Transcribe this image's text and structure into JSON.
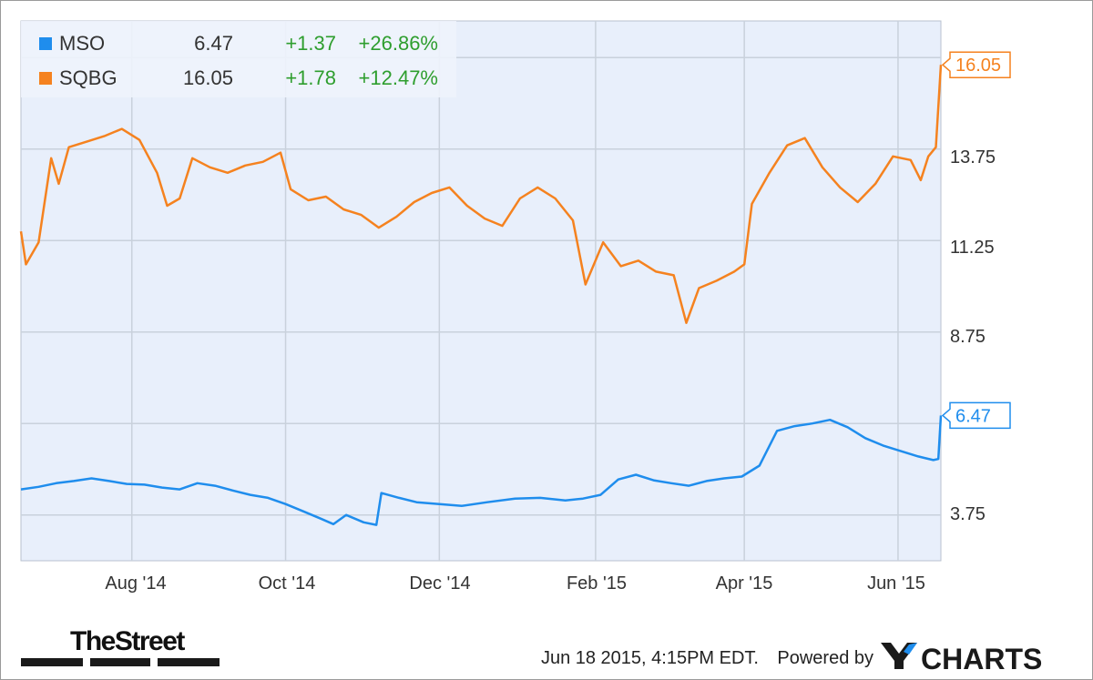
{
  "chart_data": {
    "type": "line",
    "title": "",
    "xlabel": "",
    "ylabel": "",
    "x_tick_labels": [
      "Aug '14",
      "Oct '14",
      "Dec '14",
      "Feb '15",
      "Apr '15",
      "Jun '15"
    ],
    "x_tick_dates": [
      "2014-08-01",
      "2014-10-01",
      "2014-12-01",
      "2015-02-01",
      "2015-04-01",
      "2015-06-01"
    ],
    "x_range": [
      "2014-06-18",
      "2015-06-18"
    ],
    "y_tick_labels": [
      "3.75",
      "8.75",
      "11.25",
      "13.75"
    ],
    "y_ticks": [
      3.75,
      6.25,
      8.75,
      11.25,
      13.75,
      16.25
    ],
    "ylim": [
      2.5,
      17.25
    ],
    "grid": true,
    "legend_position": "top-left",
    "series": [
      {
        "name": "MSO",
        "color": "#1f8ded",
        "last_value": "6.47",
        "change": "+1.37",
        "change_pct": "+26.86%",
        "end_label": "6.47",
        "points": [
          [
            "2014-06-18",
            4.45
          ],
          [
            "2014-06-25",
            4.52
          ],
          [
            "2014-07-02",
            4.62
          ],
          [
            "2014-07-09",
            4.68
          ],
          [
            "2014-07-16",
            4.75
          ],
          [
            "2014-07-23",
            4.68
          ],
          [
            "2014-07-30",
            4.6
          ],
          [
            "2014-08-06",
            4.58
          ],
          [
            "2014-08-13",
            4.5
          ],
          [
            "2014-08-20",
            4.45
          ],
          [
            "2014-08-27",
            4.62
          ],
          [
            "2014-09-03",
            4.55
          ],
          [
            "2014-09-10",
            4.42
          ],
          [
            "2014-09-17",
            4.3
          ],
          [
            "2014-09-24",
            4.22
          ],
          [
            "2014-10-01",
            4.05
          ],
          [
            "2014-10-08",
            3.85
          ],
          [
            "2014-10-15",
            3.65
          ],
          [
            "2014-10-20",
            3.5
          ],
          [
            "2014-10-25",
            3.75
          ],
          [
            "2014-11-01",
            3.55
          ],
          [
            "2014-11-06",
            3.48
          ],
          [
            "2014-11-08",
            4.35
          ],
          [
            "2014-11-15",
            4.22
          ],
          [
            "2014-11-22",
            4.1
          ],
          [
            "2014-12-01",
            4.05
          ],
          [
            "2014-12-10",
            4.0
          ],
          [
            "2014-12-20",
            4.1
          ],
          [
            "2014-12-31",
            4.2
          ],
          [
            "2015-01-10",
            4.22
          ],
          [
            "2015-01-20",
            4.15
          ],
          [
            "2015-01-27",
            4.2
          ],
          [
            "2015-02-03",
            4.3
          ],
          [
            "2015-02-10",
            4.72
          ],
          [
            "2015-02-17",
            4.85
          ],
          [
            "2015-02-24",
            4.7
          ],
          [
            "2015-03-03",
            4.62
          ],
          [
            "2015-03-10",
            4.55
          ],
          [
            "2015-03-17",
            4.68
          ],
          [
            "2015-03-24",
            4.75
          ],
          [
            "2015-03-31",
            4.8
          ],
          [
            "2015-04-07",
            5.1
          ],
          [
            "2015-04-14",
            6.05
          ],
          [
            "2015-04-21",
            6.18
          ],
          [
            "2015-04-28",
            6.25
          ],
          [
            "2015-05-05",
            6.35
          ],
          [
            "2015-05-12",
            6.15
          ],
          [
            "2015-05-19",
            5.85
          ],
          [
            "2015-05-26",
            5.65
          ],
          [
            "2015-06-02",
            5.5
          ],
          [
            "2015-06-09",
            5.35
          ],
          [
            "2015-06-15",
            5.25
          ],
          [
            "2015-06-17",
            5.28
          ],
          [
            "2015-06-18",
            6.47
          ]
        ]
      },
      {
        "name": "SQBG",
        "color": "#f5821f",
        "last_value": "16.05",
        "change": "+1.78",
        "change_pct": "+12.47%",
        "end_label": "16.05",
        "points": [
          [
            "2014-06-18",
            11.5
          ],
          [
            "2014-06-20",
            10.6
          ],
          [
            "2014-06-25",
            11.2
          ],
          [
            "2014-06-30",
            13.5
          ],
          [
            "2014-07-03",
            12.8
          ],
          [
            "2014-07-07",
            13.8
          ],
          [
            "2014-07-14",
            13.95
          ],
          [
            "2014-07-21",
            14.1
          ],
          [
            "2014-07-28",
            14.3
          ],
          [
            "2014-08-04",
            14.0
          ],
          [
            "2014-08-11",
            13.1
          ],
          [
            "2014-08-15",
            12.2
          ],
          [
            "2014-08-20",
            12.4
          ],
          [
            "2014-08-25",
            13.5
          ],
          [
            "2014-09-01",
            13.25
          ],
          [
            "2014-09-08",
            13.1
          ],
          [
            "2014-09-15",
            13.3
          ],
          [
            "2014-09-22",
            13.4
          ],
          [
            "2014-09-29",
            13.65
          ],
          [
            "2014-10-03",
            12.65
          ],
          [
            "2014-10-10",
            12.35
          ],
          [
            "2014-10-17",
            12.45
          ],
          [
            "2014-10-24",
            12.1
          ],
          [
            "2014-10-31",
            11.95
          ],
          [
            "2014-11-07",
            11.6
          ],
          [
            "2014-11-14",
            11.9
          ],
          [
            "2014-11-21",
            12.3
          ],
          [
            "2014-11-28",
            12.55
          ],
          [
            "2014-12-05",
            12.7
          ],
          [
            "2014-12-12",
            12.2
          ],
          [
            "2014-12-19",
            11.85
          ],
          [
            "2014-12-26",
            11.65
          ],
          [
            "2015-01-02",
            12.4
          ],
          [
            "2015-01-09",
            12.7
          ],
          [
            "2015-01-16",
            12.4
          ],
          [
            "2015-01-23",
            11.8
          ],
          [
            "2015-01-28",
            10.05
          ],
          [
            "2015-02-04",
            11.2
          ],
          [
            "2015-02-11",
            10.55
          ],
          [
            "2015-02-18",
            10.7
          ],
          [
            "2015-02-25",
            10.4
          ],
          [
            "2015-03-04",
            10.3
          ],
          [
            "2015-03-09",
            9.0
          ],
          [
            "2015-03-14",
            9.95
          ],
          [
            "2015-03-21",
            10.15
          ],
          [
            "2015-03-28",
            10.4
          ],
          [
            "2015-04-01",
            10.6
          ],
          [
            "2015-04-04",
            12.25
          ],
          [
            "2015-04-11",
            13.1
          ],
          [
            "2015-04-18",
            13.85
          ],
          [
            "2015-04-25",
            14.05
          ],
          [
            "2015-05-02",
            13.25
          ],
          [
            "2015-05-09",
            12.7
          ],
          [
            "2015-05-16",
            12.3
          ],
          [
            "2015-05-23",
            12.8
          ],
          [
            "2015-05-30",
            13.55
          ],
          [
            "2015-06-06",
            13.45
          ],
          [
            "2015-06-10",
            12.9
          ],
          [
            "2015-06-13",
            13.55
          ],
          [
            "2015-06-16",
            13.8
          ],
          [
            "2015-06-18",
            16.05
          ]
        ]
      }
    ]
  },
  "branding": {
    "publisher": "TheStreet",
    "timestamp": "Jun 18 2015, 4:15PM EDT.",
    "powered_by": "Powered by",
    "provider": "CHARTS"
  }
}
